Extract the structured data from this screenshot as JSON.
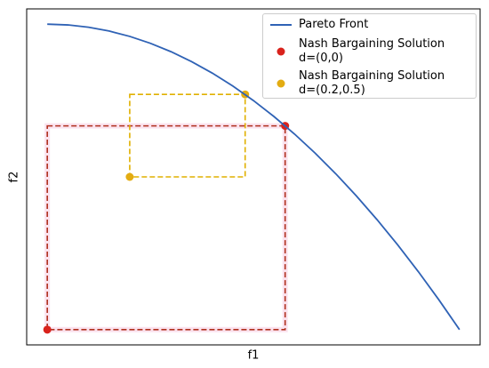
{
  "chart_data": {
    "type": "line",
    "xlabel": "f1",
    "ylabel": "f2",
    "xlim": [
      -0.05,
      1.05
    ],
    "ylim": [
      -0.05,
      1.05
    ],
    "xticks": [],
    "yticks": [],
    "legend": "upper right",
    "series": [
      {
        "name": "Pareto Front",
        "type": "line",
        "color": "#2f62b5",
        "x": [
          0,
          0.05,
          0.1,
          0.15,
          0.2,
          0.25,
          0.3,
          0.35,
          0.4,
          0.45,
          0.5,
          0.55,
          0.6,
          0.65,
          0.7,
          0.75,
          0.8,
          0.85,
          0.9,
          0.95,
          1
        ],
        "values": [
          1,
          0.9975,
          0.99,
          0.9775,
          0.96,
          0.9375,
          0.91,
          0.8775,
          0.84,
          0.7975,
          0.75,
          0.6975,
          0.64,
          0.5775,
          0.51,
          0.4375,
          0.36,
          0.2775,
          0.19,
          0.0975,
          0
        ]
      },
      {
        "name": "Nash Bargaining Solution\n d=(0,0)",
        "type": "scatter",
        "color": "#d9221c",
        "box_color": "#b0301e",
        "x": [
          0,
          0.577
        ],
        "values": [
          0,
          0.667
        ]
      },
      {
        "name": "Nash Bargaining Solution\n d=(0.2,0.5)",
        "type": "scatter",
        "color": "#e3ac12",
        "box_color": "#e0b000",
        "x": [
          0.2,
          0.48
        ],
        "values": [
          0.5,
          0.77
        ]
      }
    ]
  }
}
